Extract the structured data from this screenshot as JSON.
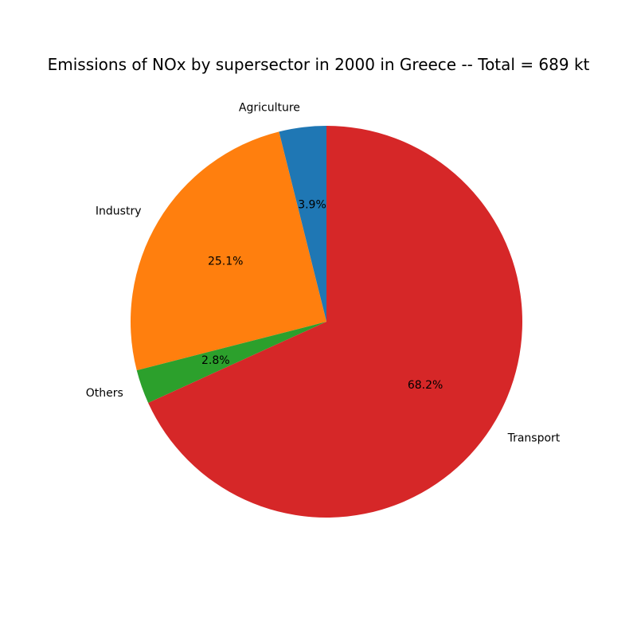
{
  "chart_data": {
    "type": "pie",
    "title": "Emissions of NOx by supersector in 2000 in Greece -- Total = 689 kt",
    "start_angle_deg": 90,
    "direction": "counterclockwise",
    "slices": [
      {
        "label": "Agriculture",
        "percent": 3.9,
        "pct_label": "3.9%",
        "color": "#1f77b4"
      },
      {
        "label": "Industry",
        "percent": 25.1,
        "pct_label": "25.1%",
        "color": "#ff7f0e"
      },
      {
        "label": "Others",
        "percent": 2.8,
        "pct_label": "2.8%",
        "color": "#2ca02c"
      },
      {
        "label": "Transport",
        "percent": 68.2,
        "pct_label": "68.2%",
        "color": "#d62728"
      }
    ]
  }
}
